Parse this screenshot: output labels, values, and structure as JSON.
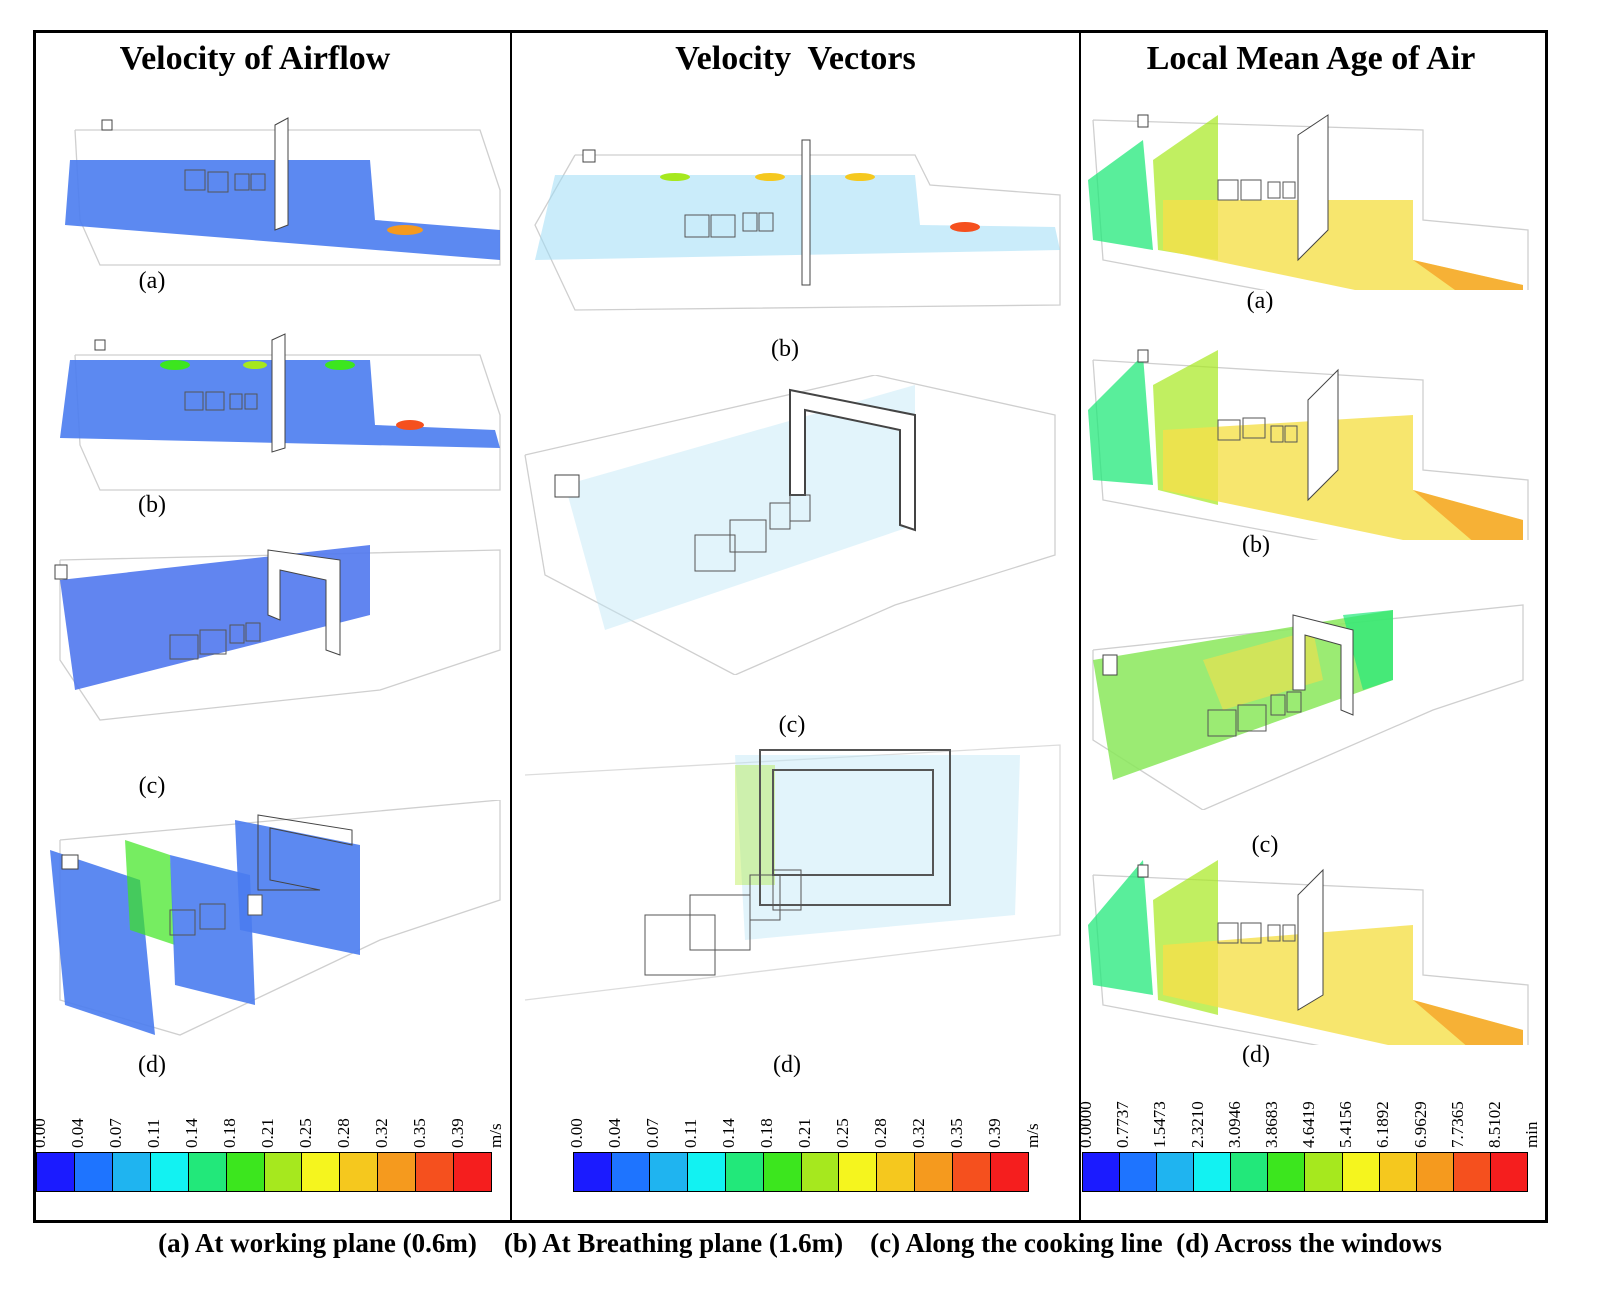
{
  "columns": {
    "velocity": {
      "title": "Velocity of Airflow",
      "labels": [
        "(a)",
        "(b)",
        "(c)",
        "(d)"
      ]
    },
    "vectors": {
      "title": "Velocity  Vectors",
      "labels": [
        "(b)",
        "(c)",
        "(d)"
      ]
    },
    "age": {
      "title": "Local Mean Age of Air",
      "labels": [
        "(a)",
        "(b)",
        "(c)",
        "(d)"
      ]
    }
  },
  "legends": {
    "velocity": {
      "unit": "m/s",
      "ticks": [
        "0.00",
        "0.04",
        "0.07",
        "0.11",
        "0.14",
        "0.18",
        "0.21",
        "0.25",
        "0.28",
        "0.32",
        "0.35",
        "0.39"
      ]
    },
    "vectors": {
      "unit": "m/s",
      "ticks": [
        "0.00",
        "0.04",
        "0.07",
        "0.11",
        "0.14",
        "0.18",
        "0.21",
        "0.25",
        "0.28",
        "0.32",
        "0.35",
        "0.39"
      ]
    },
    "age": {
      "unit": "min",
      "ticks": [
        "0.0000",
        "0.7737",
        "1.5473",
        "2.3210",
        "3.0946",
        "3.8683",
        "4.6419",
        "5.4156",
        "6.1892",
        "6.9629",
        "7.7365",
        "8.5102"
      ]
    }
  },
  "colormap": [
    "#1b1bff",
    "#1e74ff",
    "#1fb4f0",
    "#12f2f2",
    "#22e87a",
    "#3ce61e",
    "#a6e81e",
    "#f5f51e",
    "#f5c81e",
    "#f59a1e",
    "#f5501e",
    "#f51e1e"
  ],
  "caption": "(a) At working plane (0.6m)    (b) At Breathing plane (1.6m)    (c) Along the cooking line  (d) Across the windows"
}
